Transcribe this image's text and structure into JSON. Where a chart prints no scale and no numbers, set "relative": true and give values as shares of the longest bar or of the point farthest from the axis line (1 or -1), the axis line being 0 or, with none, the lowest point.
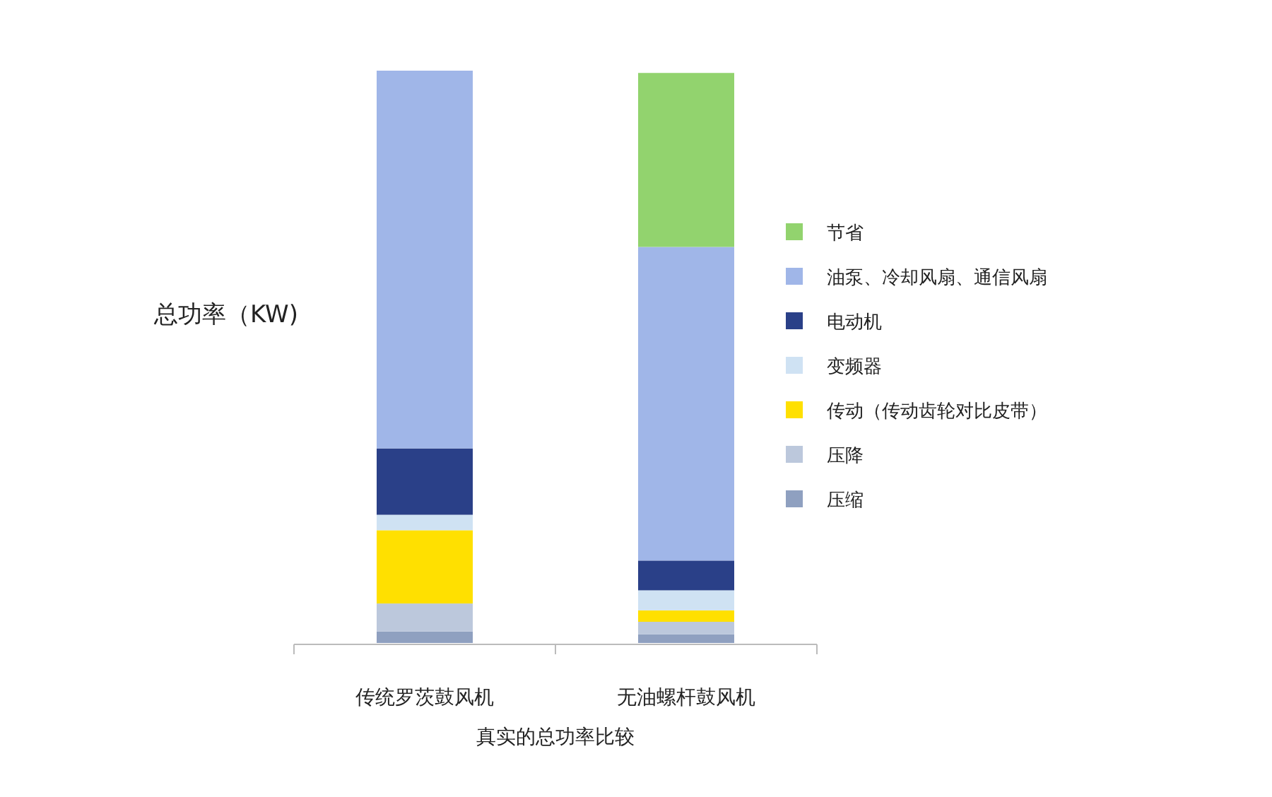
{
  "chart_data": {
    "type": "bar",
    "stacked": true,
    "relative": true,
    "ylabel": "总功率（KW)",
    "xlabel": "真实的总功率比较",
    "legend": "right",
    "categories": [
      "传统罗茨鼓风机",
      "无油螺杆鼓风机"
    ],
    "series": [
      {
        "name": "压缩",
        "color": "#8fa0c0",
        "values": [
          0.02,
          0.015
        ]
      },
      {
        "name": "压降",
        "color": "#bcc8dc",
        "values": [
          0.049,
          0.022
        ]
      },
      {
        "name": "传动（传动齿轮对比皮带）",
        "color": "#ffe000",
        "values": [
          0.128,
          0.02
        ]
      },
      {
        "name": "变频器",
        "color": "#cfe2f3",
        "values": [
          0.027,
          0.035
        ]
      },
      {
        "name": "电动机",
        "color": "#2a4088",
        "values": [
          0.116,
          0.052
        ]
      },
      {
        "name": "油泵、冷却风扇、通信风扇",
        "color": "#a0b6e8",
        "values": [
          0.66,
          0.548
        ]
      },
      {
        "name": "节省",
        "color": "#92d36e",
        "values": [
          0,
          0.304
        ]
      }
    ]
  }
}
